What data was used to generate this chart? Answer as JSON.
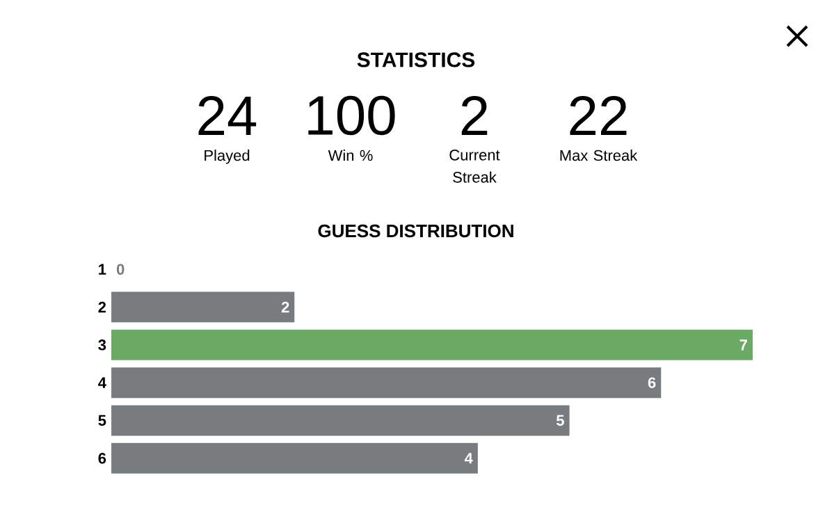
{
  "chart_data": [
    {
      "type": "other",
      "title": "STATISTICS",
      "annotations": [
        "24",
        "Played",
        "100",
        "Win %",
        "2",
        "Current Streak",
        "22",
        "Max Streak"
      ]
    },
    {
      "type": "bar",
      "title": "GUESS DISTRIBUTION",
      "orientation": "horizontal",
      "categories": [
        "1",
        "2",
        "3",
        "4",
        "5",
        "6"
      ],
      "values": [
        0,
        2,
        7,
        6,
        5,
        4
      ],
      "colors": [
        "#787c7e",
        "#787c7e",
        "#6aaa64",
        "#787c7e",
        "#787c7e",
        "#787c7e"
      ],
      "data_labels": true,
      "xlim": [
        0,
        7
      ],
      "tick_labels": "y"
    }
  ]
}
